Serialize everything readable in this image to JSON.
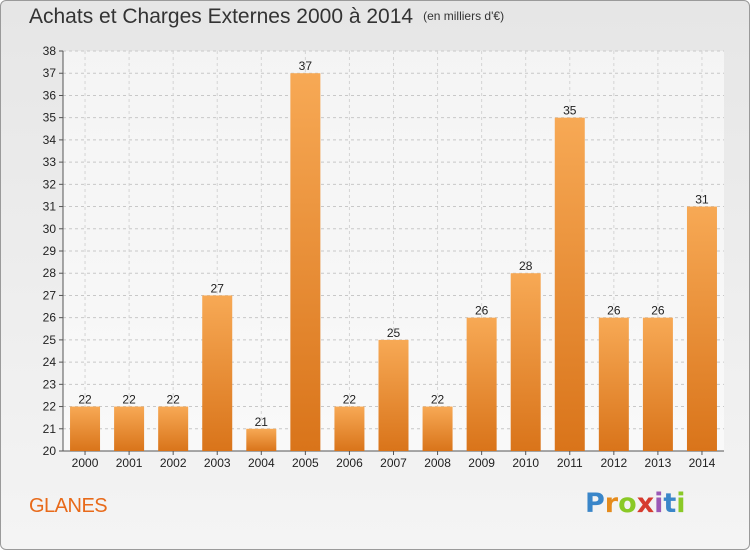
{
  "title": "Achats et Charges Externes 2000 à 2014",
  "subtitle": "(en milliers d'€)",
  "commune": "GLANES",
  "logo": "Proxiti",
  "chart_data": {
    "type": "bar",
    "categories": [
      "2000",
      "2001",
      "2002",
      "2003",
      "2004",
      "2005",
      "2006",
      "2007",
      "2008",
      "2009",
      "2010",
      "2011",
      "2012",
      "2013",
      "2014"
    ],
    "values": [
      22,
      22,
      22,
      27,
      21,
      37,
      22,
      25,
      22,
      26,
      28,
      35,
      26,
      26,
      31
    ],
    "ylim": [
      20,
      38
    ],
    "yticks": [
      20,
      21,
      22,
      23,
      24,
      25,
      26,
      27,
      28,
      29,
      30,
      31,
      32,
      33,
      34,
      35,
      36,
      37,
      38
    ],
    "grid": true,
    "bar_color_top": "#f7a955",
    "bar_color_bottom": "#d9741a"
  }
}
